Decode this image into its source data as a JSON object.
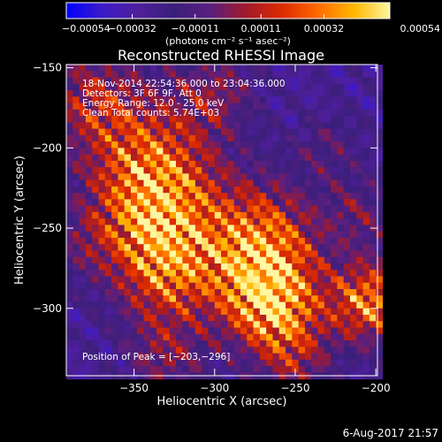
{
  "chart_data": {
    "type": "heatmap",
    "title": "Reconstructed RHESSI Image",
    "xlabel": "Heliocentric X (arcsec)",
    "ylabel": "Heliocentric Y (arcsec)",
    "xlim": [
      -392,
      -199
    ],
    "ylim": [
      -342,
      -148
    ],
    "xticks": [
      -350,
      -300,
      -250,
      -200
    ],
    "xtick_labels": [
      "−350",
      "−300",
      "−250",
      "−200"
    ],
    "yticks": [
      -300,
      -250,
      -200,
      -150
    ],
    "ytick_labels": [
      "−300",
      "−250",
      "−200",
      "−150"
    ],
    "colorbar": {
      "min": -0.00054,
      "max": 0.00054,
      "tick_values": [
        -0.00054,
        -0.00032,
        -0.00011,
        0.00011,
        0.00032,
        0.00054
      ],
      "tick_labels": [
        "−0.00054",
        "−0.00032",
        "−0.00011",
        "0.00011",
        "0.00032",
        "0.00054"
      ],
      "units_text": "(photons cm⁻² s⁻¹ asec⁻²)",
      "colormap": [
        "#0000ff",
        "#3c1bc8",
        "#4f1f9a",
        "#3a1f7a",
        "#5a1f7f",
        "#a11a2a",
        "#dd2a00",
        "#ff6a00",
        "#ffb700",
        "#fff6a0"
      ]
    },
    "peak": [
      -203,
      -296
    ],
    "annotations": [
      "18-Nov-2014 22:54:36.000 to 23:04:36.000",
      "Detectors: 3F 6F 9F, Att 0",
      "Energy Range: 12.0 - 25.0 keV",
      "Clean     Total counts: 5.74E+03",
      "Position of Peak = [−203,−296]"
    ],
    "grid": "off"
  },
  "footer": {
    "timestamp": "6-Aug-2017 21:57"
  }
}
